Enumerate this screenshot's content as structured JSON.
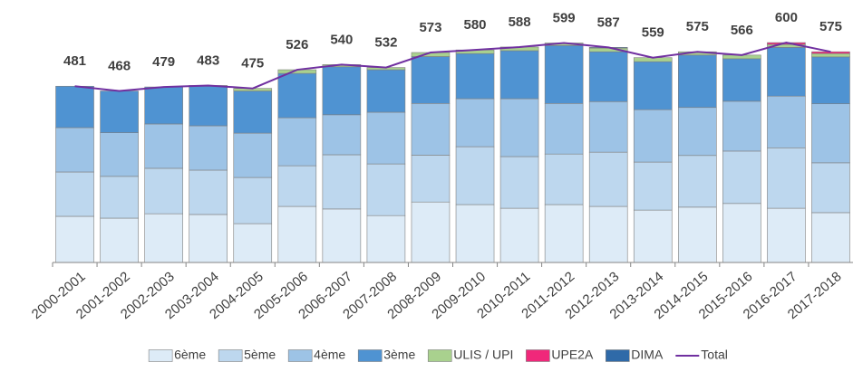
{
  "chart_data": {
    "type": "bar",
    "stacked": true,
    "categories": [
      "2000-2001",
      "2001-2002",
      "2002-2003",
      "2003-2004",
      "2004-2005",
      "2005-2006",
      "2006-2007",
      "2007-2008",
      "2008-2009",
      "2009-2010",
      "2010-2011",
      "2011-2012",
      "2012-2013",
      "2013-2014",
      "2014-2015",
      "2015-2016",
      "2016-2017",
      "2017-2018"
    ],
    "ylim": [
      0,
      700
    ],
    "series": [
      {
        "name": "6ème",
        "color": "#ddebf7",
        "values": [
          126,
          121,
          133,
          131,
          106,
          153,
          146,
          128,
          165,
          158,
          148,
          158,
          153,
          143,
          151,
          161,
          148,
          136
        ]
      },
      {
        "name": "5ème",
        "color": "#bdd7ee",
        "values": [
          121,
          114,
          124,
          121,
          126,
          111,
          148,
          141,
          128,
          158,
          141,
          138,
          148,
          131,
          141,
          143,
          165,
          136
        ]
      },
      {
        "name": "4ème",
        "color": "#9dc3e6",
        "values": [
          121,
          119,
          121,
          121,
          121,
          131,
          109,
          141,
          141,
          131,
          158,
          138,
          138,
          143,
          131,
          136,
          141,
          161
        ]
      },
      {
        "name": "3ème",
        "color": "#4f93d2",
        "values": [
          113,
          114,
          101,
          108,
          115,
          121,
          131,
          116,
          128,
          123,
          131,
          158,
          136,
          131,
          143,
          116,
          133,
          128
        ]
      },
      {
        "name": "ULIS / UPI",
        "color": "#a9d18e",
        "values": [
          0,
          0,
          0,
          2,
          7,
          10,
          6,
          6,
          11,
          10,
          10,
          7,
          10,
          11,
          9,
          10,
          8,
          9
        ]
      },
      {
        "name": "UPE2A",
        "color": "#f0287a",
        "values": [
          0,
          0,
          0,
          0,
          0,
          0,
          0,
          0,
          0,
          0,
          0,
          0,
          0,
          0,
          0,
          0,
          5,
          5
        ]
      },
      {
        "name": "DIMA",
        "color": "#2f6aa8",
        "values": [
          0,
          0,
          0,
          0,
          0,
          0,
          0,
          0,
          0,
          0,
          0,
          0,
          2,
          0,
          0,
          0,
          0,
          0
        ]
      },
      {
        "name": "Total",
        "type": "line",
        "color": "#7030a0",
        "values": [
          481,
          468,
          479,
          483,
          475,
          526,
          540,
          532,
          573,
          580,
          588,
          599,
          587,
          559,
          575,
          566,
          600,
          575
        ]
      }
    ]
  }
}
